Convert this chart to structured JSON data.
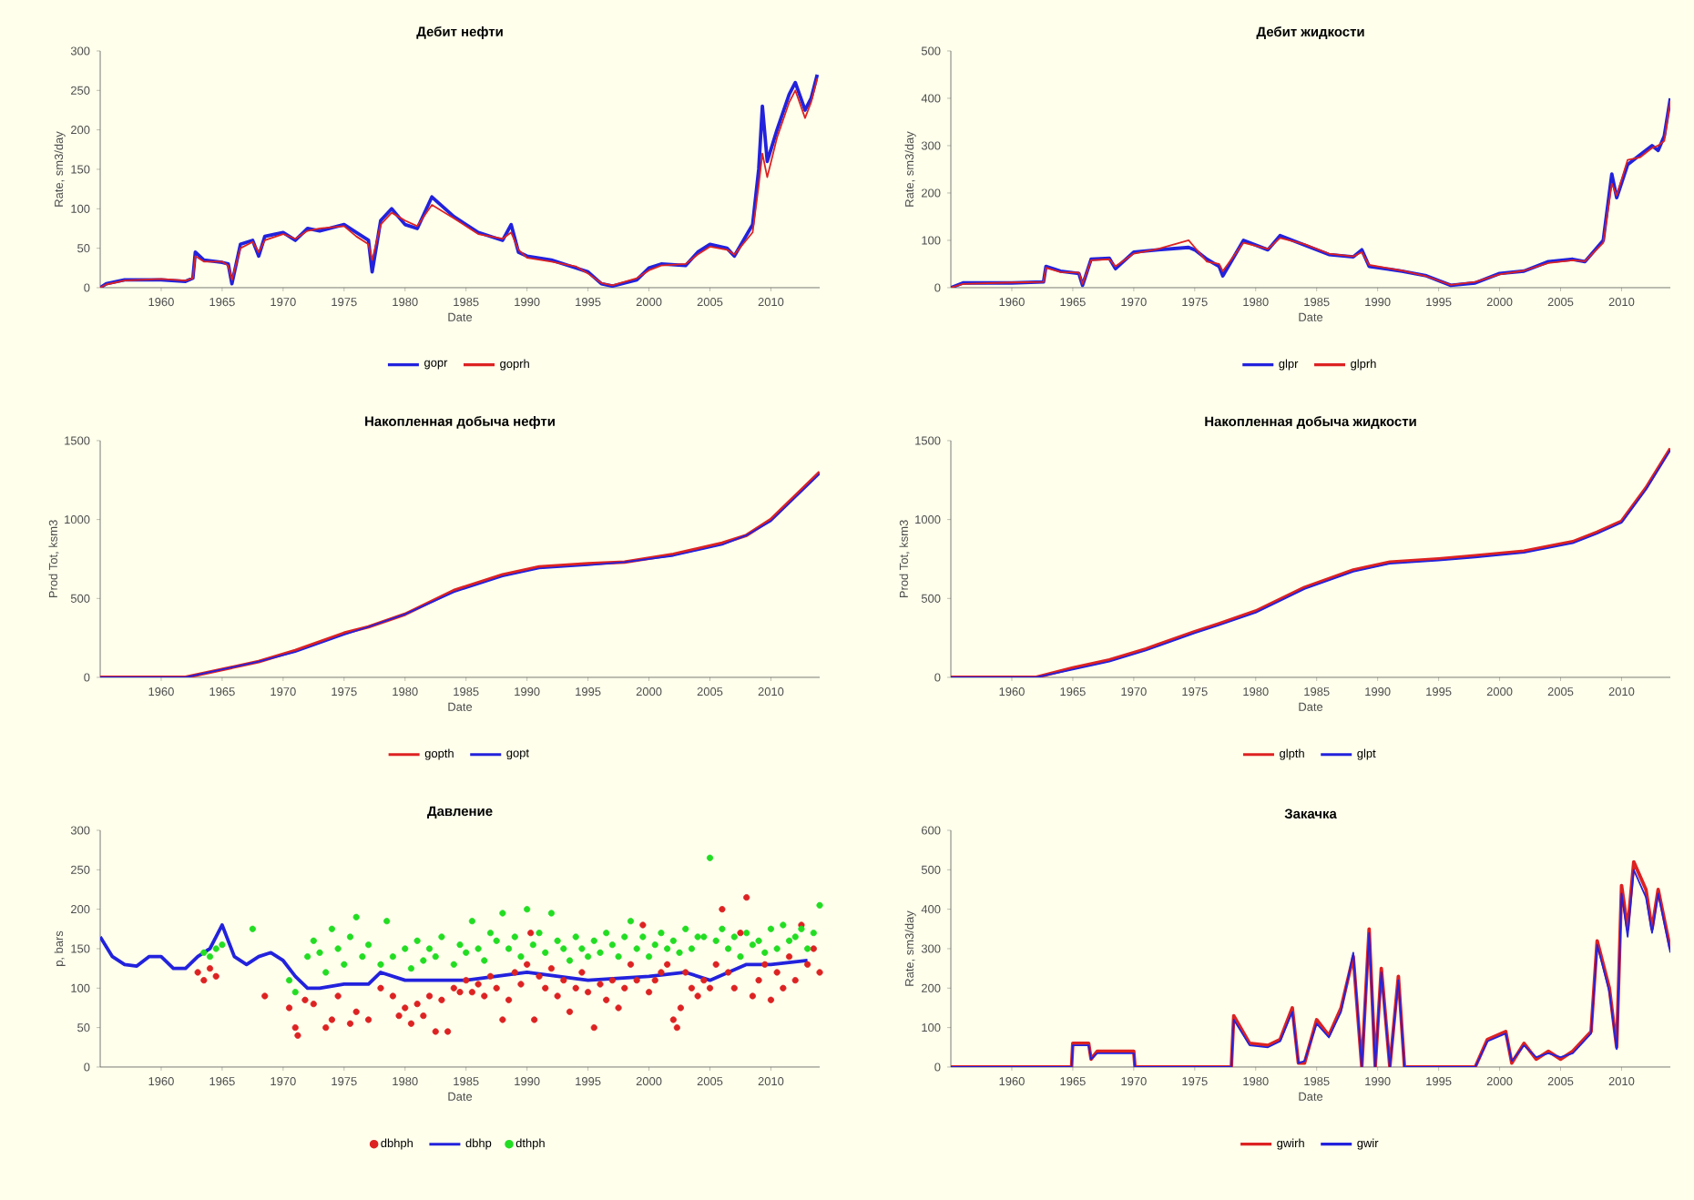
{
  "chart_data": [
    {
      "type": "line",
      "title": "Дебит нефти",
      "xlabel": "Date",
      "ylabel": "Rate, sm3/day",
      "xlim": [
        1955,
        2014
      ],
      "xticks": [
        1960,
        1965,
        1970,
        1975,
        1980,
        1985,
        1990,
        1995,
        2000,
        2005,
        2010
      ],
      "ylim": [
        0,
        300
      ],
      "yticks": [
        0,
        50,
        100,
        150,
        200,
        250,
        300
      ],
      "legend": "bottom",
      "x": [
        1955,
        1955.5,
        1957,
        1960,
        1962,
        1962.6,
        1962.8,
        1963.5,
        1965,
        1965.5,
        1965.8,
        1966.5,
        1967.5,
        1968,
        1968.5,
        1970,
        1971,
        1972,
        1973,
        1975,
        1976,
        1977,
        1977.3,
        1978,
        1978.9,
        1980,
        1981,
        1982.2,
        1984,
        1986,
        1988,
        1988.7,
        1989.3,
        1990,
        1992,
        1994,
        1995,
        1996.1,
        1997,
        1999,
        2000,
        2001,
        2003,
        2004,
        2005,
        2006.4,
        2007,
        2008.5,
        2009,
        2009.3,
        2009.7,
        2010.5,
        2011.5,
        2012,
        2012.8,
        2013.3,
        2013.8
      ],
      "series": [
        {
          "name": "gopr",
          "color": "#2222dd",
          "values": [
            0,
            5,
            10,
            10,
            8,
            12,
            45,
            35,
            32,
            30,
            5,
            55,
            60,
            40,
            65,
            70,
            60,
            75,
            72,
            80,
            70,
            60,
            20,
            85,
            100,
            80,
            75,
            115,
            90,
            70,
            60,
            80,
            45,
            40,
            35,
            25,
            20,
            5,
            2,
            10,
            25,
            30,
            28,
            45,
            55,
            50,
            40,
            80,
            150,
            230,
            160,
            200,
            245,
            260,
            225,
            240,
            270
          ]
        },
        {
          "name": "goprh",
          "color": "#dd2222",
          "values": [
            0,
            4,
            9,
            11,
            9,
            12,
            40,
            33,
            33,
            28,
            10,
            50,
            58,
            45,
            60,
            68,
            62,
            72,
            75,
            78,
            65,
            55,
            35,
            80,
            95,
            85,
            78,
            105,
            88,
            68,
            62,
            70,
            48,
            38,
            33,
            27,
            18,
            6,
            3,
            12,
            22,
            28,
            30,
            42,
            52,
            48,
            42,
            70,
            130,
            170,
            140,
            190,
            235,
            250,
            215,
            235,
            265
          ]
        }
      ]
    },
    {
      "type": "line",
      "title": "Дебит жидкости",
      "xlabel": "Date",
      "ylabel": "Rate, sm3/day",
      "xlim": [
        1955,
        2014
      ],
      "xticks": [
        1960,
        1965,
        1970,
        1975,
        1980,
        1985,
        1990,
        1995,
        2000,
        2005,
        2010
      ],
      "ylim": [
        0,
        500
      ],
      "yticks": [
        0,
        100,
        200,
        300,
        400,
        500
      ],
      "legend": "bottom",
      "x": [
        1955,
        1956,
        1960,
        1962.6,
        1962.8,
        1964,
        1965.5,
        1965.8,
        1966.5,
        1968,
        1968.5,
        1970,
        1972,
        1974.5,
        1975,
        1976,
        1977,
        1977.3,
        1979,
        1981,
        1982,
        1984,
        1986,
        1988,
        1988.7,
        1989.3,
        1992,
        1994,
        1996,
        1998,
        2000,
        2002,
        2004,
        2006,
        2007,
        2008.5,
        2009.2,
        2009.6,
        2010.5,
        2011.5,
        2012.5,
        2013,
        2013.5,
        2014
      ],
      "series": [
        {
          "name": "glpr",
          "color": "#2222dd",
          "values": [
            0,
            10,
            10,
            12,
            45,
            35,
            30,
            5,
            60,
            62,
            40,
            75,
            80,
            85,
            80,
            60,
            45,
            25,
            100,
            80,
            110,
            90,
            70,
            65,
            80,
            45,
            35,
            25,
            5,
            10,
            30,
            35,
            55,
            60,
            55,
            100,
            240,
            190,
            260,
            280,
            300,
            290,
            320,
            400
          ]
        },
        {
          "name": "glprh",
          "color": "#dd2222",
          "values": [
            0,
            8,
            11,
            12,
            42,
            33,
            32,
            8,
            58,
            60,
            45,
            72,
            82,
            100,
            85,
            55,
            50,
            35,
            95,
            82,
            105,
            92,
            72,
            66,
            75,
            48,
            36,
            24,
            6,
            12,
            28,
            36,
            52,
            58,
            56,
            95,
            220,
            195,
            270,
            275,
            295,
            300,
            310,
            395
          ]
        }
      ]
    },
    {
      "type": "line",
      "title": "Накопленная добыча нефти",
      "xlabel": "Date",
      "ylabel": "Prod Tot, ksm3",
      "xlim": [
        1955,
        2014
      ],
      "xticks": [
        1960,
        1965,
        1970,
        1975,
        1980,
        1985,
        1990,
        1995,
        2000,
        2005,
        2010
      ],
      "ylim": [
        0,
        1500
      ],
      "yticks": [
        0,
        500,
        1000,
        1500
      ],
      "legend": "bottom",
      "x": [
        1955,
        1960,
        1962,
        1965,
        1968,
        1971,
        1975,
        1977,
        1980,
        1984,
        1988,
        1991,
        1995,
        1998,
        2002,
        2006,
        2008,
        2010,
        2012,
        2014
      ],
      "series": [
        {
          "name": "gopth",
          "color": "#dd2222",
          "values": [
            0,
            0,
            0,
            50,
            100,
            170,
            280,
            320,
            400,
            550,
            650,
            700,
            720,
            730,
            780,
            850,
            900,
            1000,
            1150,
            1300
          ]
        },
        {
          "name": "gopt",
          "color": "#2222dd",
          "values": [
            0,
            0,
            0,
            50,
            100,
            160,
            270,
            320,
            400,
            540,
            640,
            690,
            710,
            730,
            770,
            840,
            900,
            990,
            1140,
            1290
          ]
        }
      ]
    },
    {
      "type": "line",
      "title": "Накопленная добыча жидкости",
      "xlabel": "Date",
      "ylabel": "Prod Tot, ksm3",
      "xlim": [
        1955,
        2014
      ],
      "xticks": [
        1960,
        1965,
        1970,
        1975,
        1980,
        1985,
        1990,
        1995,
        2000,
        2005,
        2010
      ],
      "ylim": [
        0,
        1500
      ],
      "yticks": [
        0,
        500,
        1000,
        1500
      ],
      "legend": "bottom",
      "x": [
        1955,
        1960,
        1962,
        1965,
        1968,
        1971,
        1975,
        1977,
        1980,
        1984,
        1988,
        1991,
        1995,
        1998,
        2002,
        2006,
        2008,
        2010,
        2012,
        2014
      ],
      "series": [
        {
          "name": "glpth",
          "color": "#dd2222",
          "values": [
            0,
            0,
            0,
            60,
            110,
            180,
            290,
            340,
            420,
            570,
            680,
            730,
            750,
            770,
            800,
            860,
            920,
            990,
            1200,
            1450
          ]
        },
        {
          "name": "glpt",
          "color": "#2222dd",
          "values": [
            0,
            0,
            0,
            50,
            100,
            170,
            280,
            330,
            410,
            560,
            670,
            720,
            740,
            760,
            790,
            850,
            910,
            980,
            1190,
            1440
          ]
        }
      ]
    },
    {
      "type": "line",
      "title": "Давление",
      "xlabel": "Date",
      "ylabel": "p, bars",
      "xlim": [
        1955,
        2014
      ],
      "xticks": [
        1960,
        1965,
        1970,
        1975,
        1980,
        1985,
        1990,
        1995,
        2000,
        2005,
        2010
      ],
      "ylim": [
        0,
        300
      ],
      "yticks": [
        0,
        50,
        100,
        150,
        200,
        250,
        300
      ],
      "legend": "bottom",
      "series": [
        {
          "name": "dbhph",
          "type": "scatter",
          "marker": "circle",
          "color": "#dd2222",
          "x": [
            1963,
            1963.5,
            1964,
            1964.5,
            1968.5,
            1970.5,
            1971,
            1971.2,
            1971.8,
            1972.5,
            1973.5,
            1974,
            1974.5,
            1975.5,
            1976,
            1977,
            1978,
            1979,
            1979.5,
            1980,
            1980.5,
            1981,
            1981.5,
            1982,
            1982.5,
            1983,
            1983.5,
            1984,
            1984.5,
            1985,
            1985.5,
            1986,
            1986.5,
            1987,
            1987.5,
            1988,
            1988.5,
            1989,
            1989.5,
            1990,
            1990.3,
            1990.6,
            1991,
            1991.5,
            1992,
            1992.5,
            1993,
            1993.5,
            1994,
            1994.5,
            1995,
            1995.5,
            1996,
            1996.5,
            1997,
            1997.5,
            1998,
            1998.5,
            1999,
            1999.5,
            2000,
            2000.5,
            2001,
            2001.5,
            2002,
            2002.3,
            2002.6,
            2003,
            2003.5,
            2004,
            2004.5,
            2005,
            2005.5,
            2006,
            2006.5,
            2007,
            2007.5,
            2008,
            2008.5,
            2009,
            2009.5,
            2010,
            2010.5,
            2011,
            2011.5,
            2012,
            2012.5,
            2013,
            2013.5,
            2014
          ],
          "values": [
            120,
            110,
            125,
            115,
            90,
            75,
            50,
            40,
            85,
            80,
            50,
            60,
            90,
            55,
            70,
            60,
            100,
            90,
            65,
            75,
            55,
            80,
            65,
            90,
            45,
            85,
            45,
            100,
            95,
            110,
            95,
            105,
            90,
            115,
            100,
            60,
            85,
            120,
            105,
            130,
            170,
            60,
            115,
            100,
            125,
            90,
            110,
            70,
            100,
            120,
            95,
            50,
            105,
            85,
            110,
            75,
            100,
            130,
            110,
            180,
            95,
            110,
            120,
            130,
            60,
            50,
            75,
            120,
            100,
            90,
            110,
            100,
            130,
            200,
            120,
            100,
            170,
            215,
            90,
            110,
            130,
            85,
            120,
            100,
            140,
            110,
            180,
            130,
            150,
            120
          ]
        },
        {
          "name": "dbhp",
          "type": "line",
          "color": "#2222dd",
          "x": [
            1955,
            1956,
            1957,
            1958,
            1959,
            1960,
            1961,
            1962,
            1963,
            1964,
            1965,
            1966,
            1967,
            1968,
            1969,
            1970,
            1971,
            1972,
            1973,
            1975,
            1977,
            1978,
            1980,
            1985,
            1990,
            1995,
            2000,
            2003,
            2005,
            2008,
            2010,
            2013
          ],
          "values": [
            165,
            140,
            130,
            128,
            140,
            140,
            125,
            125,
            140,
            150,
            180,
            140,
            130,
            140,
            145,
            135,
            115,
            100,
            100,
            105,
            105,
            120,
            110,
            110,
            120,
            110,
            115,
            120,
            110,
            130,
            130,
            135
          ]
        },
        {
          "name": "dthph",
          "type": "scatter",
          "marker": "circle",
          "color": "#22dd22",
          "x": [
            1963.5,
            1964,
            1964.5,
            1965,
            1967.5,
            1970.5,
            1971,
            1972,
            1972.5,
            1973,
            1973.5,
            1974,
            1974.5,
            1975,
            1975.5,
            1976,
            1976.5,
            1977,
            1978,
            1978.5,
            1979,
            1980,
            1980.5,
            1981,
            1981.5,
            1982,
            1982.5,
            1983,
            1984,
            1984.5,
            1985,
            1985.5,
            1986,
            1986.5,
            1987,
            1987.5,
            1988,
            1988.5,
            1989,
            1989.5,
            1990,
            1990.5,
            1991,
            1991.5,
            1992,
            1992.5,
            1993,
            1993.5,
            1994,
            1994.5,
            1995,
            1995.5,
            1996,
            1996.5,
            1997,
            1997.5,
            1998,
            1998.5,
            1999,
            1999.5,
            2000,
            2000.5,
            2001,
            2001.5,
            2002,
            2002.5,
            2003,
            2003.5,
            2004,
            2004.5,
            2005,
            2005.5,
            2006,
            2006.5,
            2007,
            2007.5,
            2008,
            2008.5,
            2009,
            2009.5,
            2010,
            2010.5,
            2011,
            2011.5,
            2012,
            2012.5,
            2013,
            2013.5,
            2014
          ],
          "values": [
            145,
            140,
            150,
            155,
            175,
            110,
            95,
            140,
            160,
            145,
            120,
            175,
            150,
            130,
            165,
            190,
            140,
            155,
            130,
            185,
            140,
            150,
            125,
            160,
            135,
            150,
            140,
            165,
            130,
            155,
            145,
            185,
            150,
            135,
            170,
            160,
            195,
            150,
            165,
            140,
            200,
            155,
            170,
            145,
            195,
            160,
            150,
            135,
            165,
            150,
            140,
            160,
            145,
            170,
            155,
            140,
            165,
            185,
            150,
            165,
            140,
            155,
            170,
            150,
            160,
            145,
            175,
            150,
            165,
            165,
            265,
            160,
            175,
            150,
            165,
            140,
            170,
            155,
            160,
            145,
            175,
            150,
            180,
            160,
            165,
            175,
            150,
            170,
            205
          ]
        }
      ]
    },
    {
      "type": "line",
      "title": "Закачка",
      "xlabel": "Date",
      "ylabel": "Rate, sm3/day",
      "xlim": [
        1955,
        2014
      ],
      "xticks": [
        1960,
        1965,
        1970,
        1975,
        1980,
        1985,
        1990,
        1995,
        2000,
        2005,
        2010
      ],
      "ylim": [
        0,
        600
      ],
      "yticks": [
        0,
        100,
        200,
        300,
        400,
        500,
        600
      ],
      "legend": "bottom",
      "x": [
        1955,
        1964.9,
        1965,
        1966.3,
        1966.5,
        1967,
        1970,
        1970.1,
        1978,
        1978.2,
        1979.5,
        1981,
        1982,
        1983,
        1983.5,
        1984,
        1985,
        1986,
        1987,
        1988,
        1988.7,
        1989.3,
        1989.8,
        1990.3,
        1991,
        1991.7,
        1992.2,
        1998,
        1999,
        2000.5,
        2001,
        2002,
        2003,
        2004,
        2005,
        2006,
        2007.5,
        2008,
        2009,
        2009.6,
        2010,
        2010.5,
        2011,
        2012,
        2012.5,
        2013,
        2014
      ],
      "series": [
        {
          "name": "gwirh",
          "color": "#dd2222",
          "values": [
            0,
            0,
            60,
            60,
            20,
            40,
            40,
            0,
            0,
            130,
            60,
            55,
            70,
            150,
            10,
            10,
            120,
            80,
            150,
            280,
            0,
            350,
            0,
            250,
            0,
            230,
            0,
            0,
            70,
            90,
            10,
            60,
            20,
            40,
            20,
            40,
            90,
            320,
            200,
            50,
            460,
            350,
            520,
            450,
            350,
            450,
            300
          ]
        },
        {
          "name": "gwir",
          "color": "#2222dd",
          "values": [
            0,
            0,
            55,
            55,
            20,
            35,
            35,
            0,
            0,
            120,
            55,
            50,
            65,
            140,
            10,
            15,
            110,
            75,
            140,
            290,
            0,
            340,
            0,
            240,
            0,
            220,
            0,
            0,
            65,
            85,
            15,
            55,
            25,
            35,
            25,
            35,
            85,
            310,
            190,
            45,
            440,
            330,
            500,
            430,
            340,
            440,
            290
          ]
        }
      ]
    }
  ]
}
